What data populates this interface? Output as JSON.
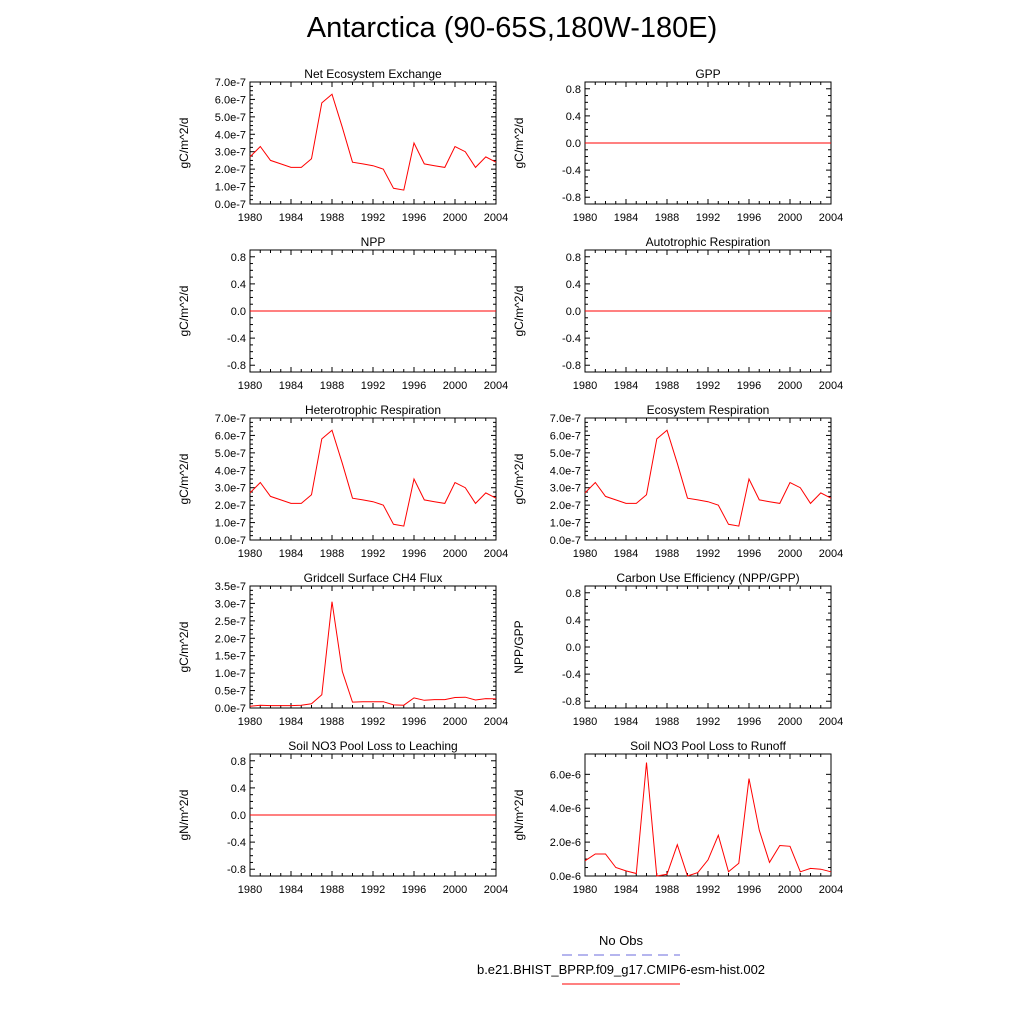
{
  "page": {
    "title": "Antarctica (90-65S,180W-180E)"
  },
  "legend": {
    "obs_label": "No Obs",
    "model_label": "b.e21.BHIST_BPRP.f09_g17.CMIP6-esm-hist.002",
    "obs_color": "#6b6bdc",
    "model_color": "#ff0000"
  },
  "chart_data": [
    {
      "type": "line",
      "title": "Net Ecosystem Exchange",
      "ylabel": "gC/m^2/d",
      "xlim": [
        1980,
        2004
      ],
      "ylim": [
        0,
        7e-07
      ],
      "xticks": [
        "1980",
        "1984",
        "1988",
        "1992",
        "1996",
        "2000",
        "2004"
      ],
      "yticks": [
        "0.0e-7",
        "1.0e-7",
        "2.0e-7",
        "3.0e-7",
        "4.0e-7",
        "5.0e-7",
        "6.0e-7",
        "7.0e-7"
      ],
      "series": [
        {
          "x": [
            1980,
            1981,
            1982,
            1983,
            1984,
            1985,
            1986,
            1987,
            1988,
            1989,
            1990,
            1991,
            1992,
            1993,
            1994,
            1995,
            1996,
            1997,
            1998,
            1999,
            2000,
            2001,
            2002,
            2003,
            2004
          ],
          "y": [
            2.7e-07,
            3.3e-07,
            2.5e-07,
            2.3e-07,
            2.1e-07,
            2.1e-07,
            2.6e-07,
            5.8e-07,
            6.3e-07,
            4.4e-07,
            2.4e-07,
            2.3e-07,
            2.2e-07,
            2e-07,
            9e-08,
            8e-08,
            3.5e-07,
            2.3e-07,
            2.2e-07,
            2.1e-07,
            3.3e-07,
            3e-07,
            2.1e-07,
            2.7e-07,
            2.4e-07
          ]
        }
      ]
    },
    {
      "type": "line",
      "title": "GPP",
      "ylabel": "gC/m^2/d",
      "xlim": [
        1980,
        2004
      ],
      "ylim": [
        -0.9,
        0.9
      ],
      "xticks": [
        "1980",
        "1984",
        "1988",
        "1992",
        "1996",
        "2000",
        "2004"
      ],
      "yticks": [
        "-0.8",
        "-0.4",
        "0.0",
        "0.4",
        "0.8"
      ],
      "series": [
        {
          "x": [
            1980,
            2004
          ],
          "y": [
            0,
            0
          ]
        }
      ]
    },
    {
      "type": "line",
      "title": "NPP",
      "ylabel": "gC/m^2/d",
      "xlim": [
        1980,
        2004
      ],
      "ylim": [
        -0.9,
        0.9
      ],
      "xticks": [
        "1980",
        "1984",
        "1988",
        "1992",
        "1996",
        "2000",
        "2004"
      ],
      "yticks": [
        "-0.8",
        "-0.4",
        "0.0",
        "0.4",
        "0.8"
      ],
      "series": [
        {
          "x": [
            1980,
            2004
          ],
          "y": [
            0,
            0
          ]
        }
      ]
    },
    {
      "type": "line",
      "title": "Autotrophic Respiration",
      "ylabel": "gC/m^2/d",
      "xlim": [
        1980,
        2004
      ],
      "ylim": [
        -0.9,
        0.9
      ],
      "xticks": [
        "1980",
        "1984",
        "1988",
        "1992",
        "1996",
        "2000",
        "2004"
      ],
      "yticks": [
        "-0.8",
        "-0.4",
        "0.0",
        "0.4",
        "0.8"
      ],
      "series": [
        {
          "x": [
            1980,
            2004
          ],
          "y": [
            0,
            0
          ]
        }
      ]
    },
    {
      "type": "line",
      "title": "Heterotrophic Respiration",
      "ylabel": "gC/m^2/d",
      "xlim": [
        1980,
        2004
      ],
      "ylim": [
        0,
        7e-07
      ],
      "xticks": [
        "1980",
        "1984",
        "1988",
        "1992",
        "1996",
        "2000",
        "2004"
      ],
      "yticks": [
        "0.0e-7",
        "1.0e-7",
        "2.0e-7",
        "3.0e-7",
        "4.0e-7",
        "5.0e-7",
        "6.0e-7",
        "7.0e-7"
      ],
      "series": [
        {
          "x": [
            1980,
            1981,
            1982,
            1983,
            1984,
            1985,
            1986,
            1987,
            1988,
            1989,
            1990,
            1991,
            1992,
            1993,
            1994,
            1995,
            1996,
            1997,
            1998,
            1999,
            2000,
            2001,
            2002,
            2003,
            2004
          ],
          "y": [
            2.7e-07,
            3.3e-07,
            2.5e-07,
            2.3e-07,
            2.1e-07,
            2.1e-07,
            2.6e-07,
            5.8e-07,
            6.3e-07,
            4.4e-07,
            2.4e-07,
            2.3e-07,
            2.2e-07,
            2e-07,
            9e-08,
            8e-08,
            3.5e-07,
            2.3e-07,
            2.2e-07,
            2.1e-07,
            3.3e-07,
            3e-07,
            2.1e-07,
            2.7e-07,
            2.4e-07
          ]
        }
      ]
    },
    {
      "type": "line",
      "title": "Ecosystem Respiration",
      "ylabel": "gC/m^2/d",
      "xlim": [
        1980,
        2004
      ],
      "ylim": [
        0,
        7e-07
      ],
      "xticks": [
        "1980",
        "1984",
        "1988",
        "1992",
        "1996",
        "2000",
        "2004"
      ],
      "yticks": [
        "0.0e-7",
        "1.0e-7",
        "2.0e-7",
        "3.0e-7",
        "4.0e-7",
        "5.0e-7",
        "6.0e-7",
        "7.0e-7"
      ],
      "series": [
        {
          "x": [
            1980,
            1981,
            1982,
            1983,
            1984,
            1985,
            1986,
            1987,
            1988,
            1989,
            1990,
            1991,
            1992,
            1993,
            1994,
            1995,
            1996,
            1997,
            1998,
            1999,
            2000,
            2001,
            2002,
            2003,
            2004
          ],
          "y": [
            2.7e-07,
            3.3e-07,
            2.5e-07,
            2.3e-07,
            2.1e-07,
            2.1e-07,
            2.6e-07,
            5.8e-07,
            6.3e-07,
            4.4e-07,
            2.4e-07,
            2.3e-07,
            2.2e-07,
            2e-07,
            9e-08,
            8e-08,
            3.5e-07,
            2.3e-07,
            2.2e-07,
            2.1e-07,
            3.3e-07,
            3e-07,
            2.1e-07,
            2.7e-07,
            2.4e-07
          ]
        }
      ]
    },
    {
      "type": "line",
      "title": "Gridcell Surface CH4 Flux",
      "ylabel": "gC/m^2/d",
      "xlim": [
        1980,
        2004
      ],
      "ylim": [
        0,
        3.5e-07
      ],
      "xticks": [
        "1980",
        "1984",
        "1988",
        "1992",
        "1996",
        "2000",
        "2004"
      ],
      "yticks": [
        "0.0e-7",
        "0.5e-7",
        "1.0e-7",
        "1.5e-7",
        "2.0e-7",
        "2.5e-7",
        "3.0e-7",
        "3.5e-7"
      ],
      "series": [
        {
          "x": [
            1980,
            1981,
            1982,
            1983,
            1984,
            1985,
            1986,
            1987,
            1988,
            1989,
            1990,
            1991,
            1992,
            1993,
            1994,
            1995,
            1996,
            1997,
            1998,
            1999,
            2000,
            2001,
            2002,
            2003,
            2004
          ],
          "y": [
            5e-09,
            8e-09,
            7e-09,
            7e-09,
            7e-09,
            8e-09,
            1.2e-08,
            3.8e-08,
            3.05e-07,
            1.05e-07,
            1.7e-08,
            1.8e-08,
            1.8e-08,
            1.8e-08,
            9e-09,
            8e-09,
            2.9e-08,
            2.2e-08,
            2.4e-08,
            2.4e-08,
            3e-08,
            3.1e-08,
            2.3e-08,
            2.7e-08,
            2.6e-08
          ]
        }
      ]
    },
    {
      "type": "line",
      "title": "Carbon Use Efficiency (NPP/GPP)",
      "ylabel": "NPP/GPP",
      "xlim": [
        1980,
        2004
      ],
      "ylim": [
        -0.9,
        0.9
      ],
      "xticks": [
        "1980",
        "1984",
        "1988",
        "1992",
        "1996",
        "2000",
        "2004"
      ],
      "yticks": [
        "-0.8",
        "-0.4",
        "0.0",
        "0.4",
        "0.8"
      ],
      "series": []
    },
    {
      "type": "line",
      "title": "Soil NO3 Pool Loss to Leaching",
      "ylabel": "gN/m^2/d",
      "xlim": [
        1980,
        2004
      ],
      "ylim": [
        -0.9,
        0.9
      ],
      "xticks": [
        "1980",
        "1984",
        "1988",
        "1992",
        "1996",
        "2000",
        "2004"
      ],
      "yticks": [
        "-0.8",
        "-0.4",
        "0.0",
        "0.4",
        "0.8"
      ],
      "series": [
        {
          "x": [
            1980,
            2004
          ],
          "y": [
            0,
            0
          ]
        }
      ]
    },
    {
      "type": "line",
      "title": "Soil NO3 Pool Loss to Runoff",
      "ylabel": "gN/m^2/d",
      "xlim": [
        1980,
        2004
      ],
      "ylim": [
        0,
        7.2e-06
      ],
      "xticks": [
        "1980",
        "1984",
        "1988",
        "1992",
        "1996",
        "2000",
        "2004"
      ],
      "yticks": [
        "0.0e-6",
        "2.0e-6",
        "4.0e-6",
        "6.0e-6"
      ],
      "series": [
        {
          "x": [
            1980,
            1981,
            1982,
            1983,
            1984,
            1985,
            1986,
            1987,
            1988,
            1989,
            1990,
            1991,
            1992,
            1993,
            1994,
            1995,
            1996,
            1997,
            1998,
            1999,
            2000,
            2001,
            2002,
            2003,
            2004
          ],
          "y": [
            9e-07,
            1.3e-06,
            1.3e-06,
            5e-07,
            3e-07,
            1.5e-07,
            6.7e-06,
            0.0,
            1e-07,
            1.85e-06,
            0.0,
            2e-07,
            9.5e-07,
            2.4e-06,
            2.5e-07,
            7.5e-07,
            5.75e-06,
            2.7e-06,
            8e-07,
            1.8e-06,
            1.75e-06,
            2.5e-07,
            4.5e-07,
            4e-07,
            2.5e-07
          ]
        }
      ]
    }
  ]
}
